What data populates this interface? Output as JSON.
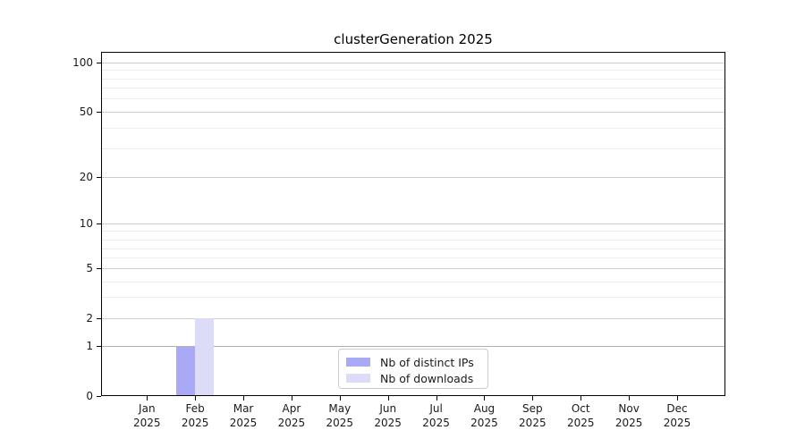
{
  "chart_data": {
    "type": "bar",
    "title": "clusterGeneration 2025",
    "x_categories": [
      "Jan",
      "Feb",
      "Mar",
      "Apr",
      "May",
      "Jun",
      "Jul",
      "Aug",
      "Sep",
      "Oct",
      "Nov",
      "Dec"
    ],
    "x_year": "2025",
    "series": [
      {
        "name": "Nb of distinct IPs",
        "color": "#a9a9f5",
        "values": [
          0,
          1,
          0,
          0,
          0,
          0,
          0,
          0,
          0,
          0,
          0,
          0
        ]
      },
      {
        "name": "Nb of downloads",
        "color": "#dcdcf8",
        "values": [
          0,
          2,
          0,
          0,
          0,
          0,
          0,
          0,
          0,
          0,
          0,
          0
        ]
      }
    ],
    "y_ticks": [
      "0",
      "1",
      "2",
      "5",
      "10",
      "20",
      "50",
      "100"
    ],
    "y_scale": "symlog",
    "ylim": [
      0,
      130
    ],
    "grid": true,
    "legend": {
      "entries": [
        "Nb of distinct IPs",
        "Nb of downloads"
      ],
      "position": "lower center (inside plot)"
    }
  }
}
